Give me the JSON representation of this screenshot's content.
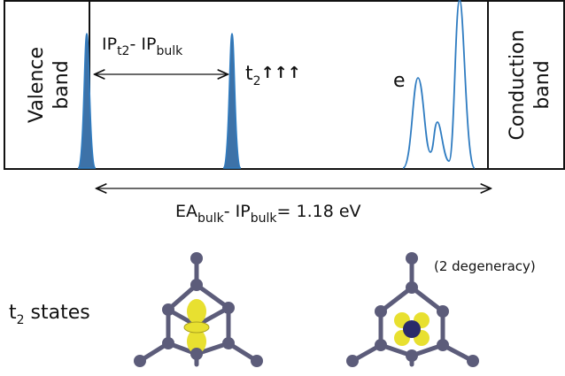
{
  "band_panel": {
    "valence_band": [
      "Valence",
      "band"
    ],
    "conduction_band": [
      "Conduction",
      "band"
    ],
    "ip_gap": {
      "main1": "IP",
      "sub1": "t2",
      "main2": "- IP",
      "sub2": "bulk"
    },
    "t2_label": {
      "main": "t",
      "sub": "2",
      "arrows": "↑↑↑"
    },
    "e_label": "e"
  },
  "gap_label": {
    "main1": "EA",
    "sub1": "bulk",
    "main2": "- IP",
    "sub2": "bulk",
    "main3": "= 1.18 eV"
  },
  "states": {
    "label": {
      "main": "t",
      "sub": "2",
      "rest": " states"
    },
    "degeneracy": "(2 degeneracy)"
  }
}
